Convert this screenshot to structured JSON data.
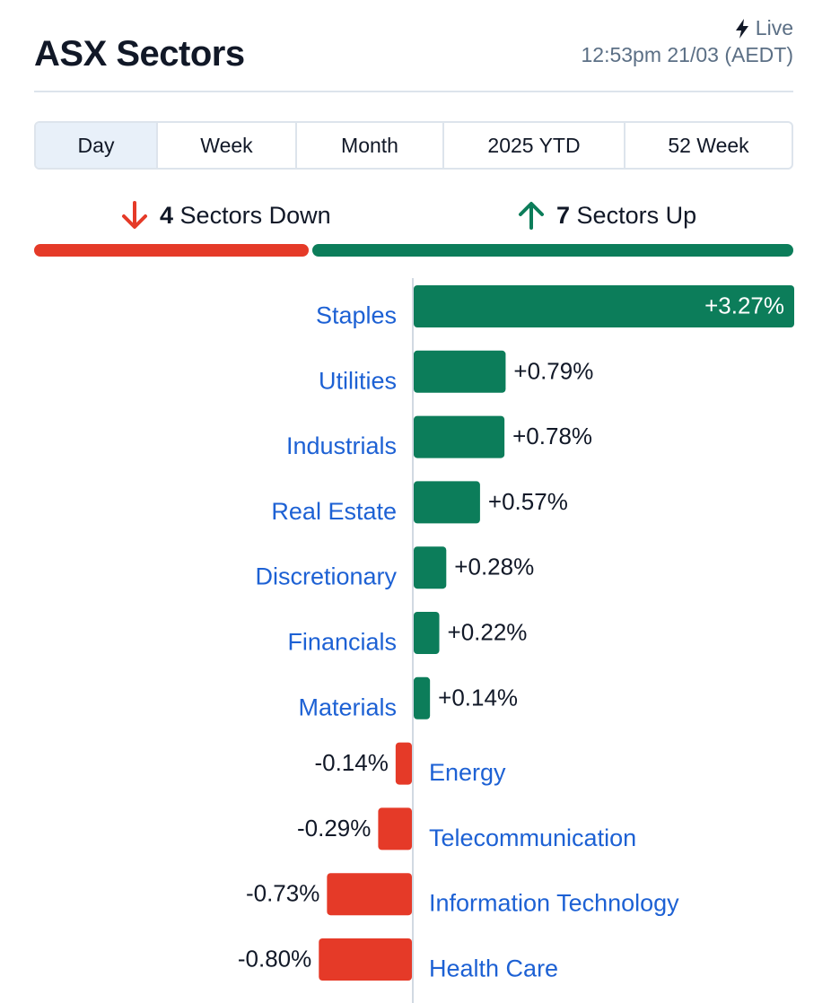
{
  "header": {
    "title": "ASX Sectors",
    "live_label": "Live",
    "timestamp": "12:53pm 21/03 (AEDT)"
  },
  "tabs": [
    {
      "label": "Day",
      "active": true
    },
    {
      "label": "Week",
      "active": false
    },
    {
      "label": "Month",
      "active": false
    },
    {
      "label": "2025 YTD",
      "active": false
    },
    {
      "label": "52 Week",
      "active": false
    }
  ],
  "summary": {
    "down_count": "4",
    "down_label": "Sectors Down",
    "up_count": "7",
    "up_label": "Sectors Up"
  },
  "colors": {
    "up": "#0c7d5a",
    "down": "#e53a28",
    "label": "#1d61d4"
  },
  "chart_data": {
    "type": "bar",
    "orientation": "horizontal",
    "categories": [
      "Staples",
      "Utilities",
      "Industrials",
      "Real Estate",
      "Discretionary",
      "Financials",
      "Materials",
      "Energy",
      "Telecommunication",
      "Information Technology",
      "Health Care"
    ],
    "values": [
      3.27,
      0.79,
      0.78,
      0.57,
      0.28,
      0.22,
      0.14,
      -0.14,
      -0.29,
      -0.73,
      -0.8
    ],
    "value_labels": [
      "+3.27%",
      "+0.79%",
      "+0.78%",
      "+0.57%",
      "+0.28%",
      "+0.22%",
      "+0.14%",
      "-0.14%",
      "-0.29%",
      "-0.73%",
      "-0.80%"
    ],
    "unit": "%"
  }
}
